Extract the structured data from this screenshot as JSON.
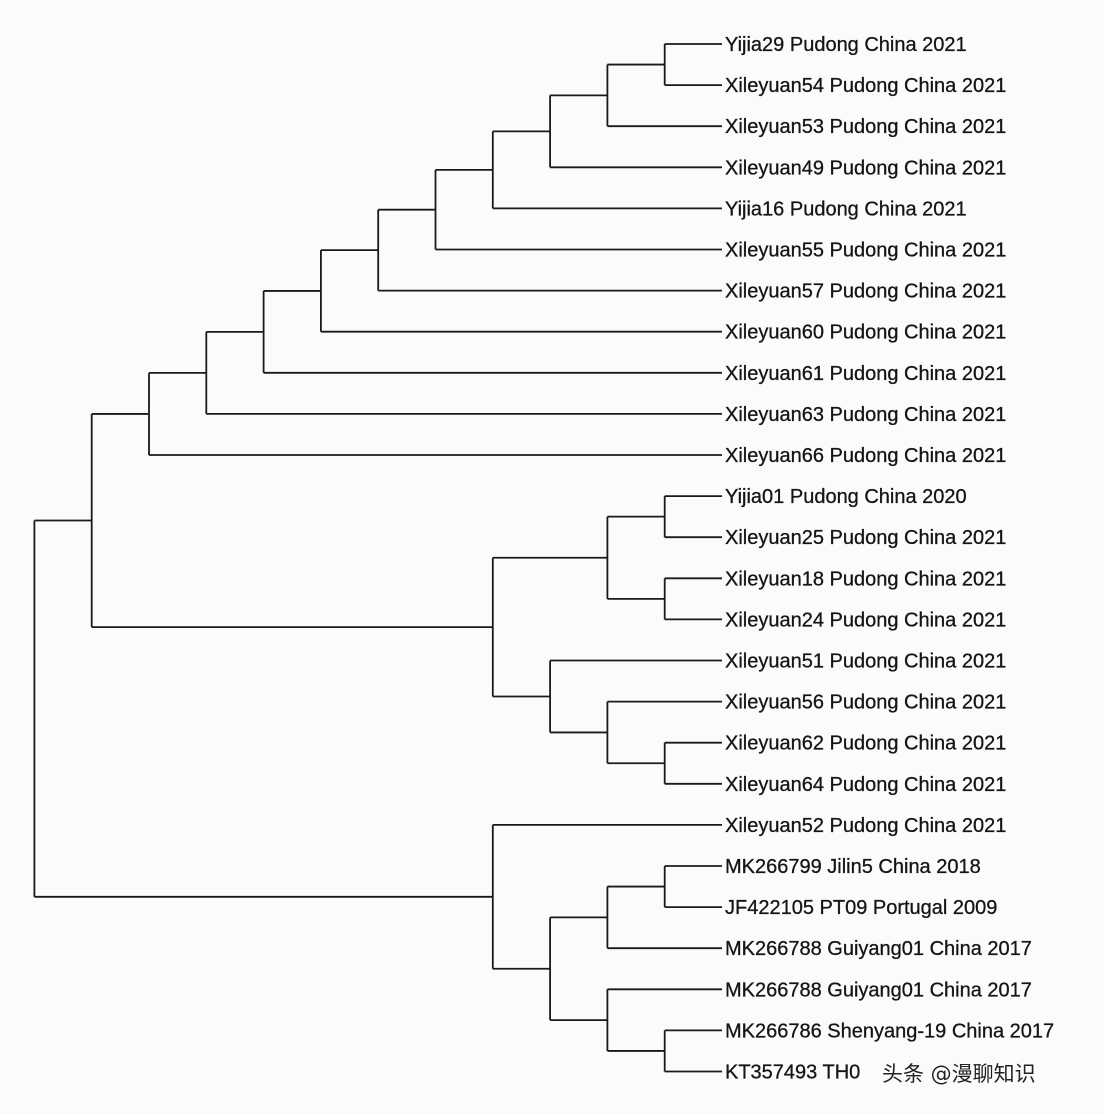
{
  "tree": {
    "children": [
      {
        "children": [
          {
            "children": [
              {
                "children": [
                  {
                    "children": [
                      {
                        "children": [
                          {
                            "children": [
                              {
                                "children": [
                                  {
                                    "children": [
                                      {
                                        "children": [
                                          {
                                            "children": [
                                              {
                                                "children": [
                                                  {
                                                    "name": "Yijia29 Pudong China 2021"
                                                  },
                                                  {
                                                    "name": "Xileyuan54 Pudong China 2021"
                                                  }
                                                ]
                                              },
                                              {
                                                "name": "Xileyuan53 Pudong China 2021"
                                              }
                                            ]
                                          },
                                          {
                                            "name": "Xileyuan49 Pudong China 2021"
                                          }
                                        ]
                                      },
                                      {
                                        "name": "Yijia16 Pudong China 2021"
                                      }
                                    ]
                                  },
                                  {
                                    "name": "Xileyuan55 Pudong China 2021"
                                  }
                                ]
                              },
                              {
                                "name": "Xileyuan57 Pudong China 2021"
                              }
                            ]
                          },
                          {
                            "name": "Xileyuan60 Pudong China 2021"
                          }
                        ]
                      },
                      {
                        "name": "Xileyuan61 Pudong China 2021"
                      }
                    ]
                  },
                  {
                    "name": "Xileyuan63 Pudong China 2021"
                  }
                ]
              },
              {
                "name": "Xileyuan66 Pudong China 2021"
              }
            ]
          },
          {
            "children": [
              {
                "children": [
                  {
                    "children": [
                      {
                        "name": "Yijia01 Pudong China 2020"
                      },
                      {
                        "name": "Xileyuan25 Pudong China 2021"
                      }
                    ]
                  },
                  {
                    "children": [
                      {
                        "name": "Xileyuan18 Pudong China 2021"
                      },
                      {
                        "name": "Xileyuan24 Pudong China 2021"
                      }
                    ]
                  }
                ]
              },
              {
                "children": [
                  {
                    "name": "Xileyuan51 Pudong China 2021"
                  },
                  {
                    "children": [
                      {
                        "name": "Xileyuan56 Pudong China 2021"
                      },
                      {
                        "children": [
                          {
                            "name": "Xileyuan62 Pudong China 2021"
                          },
                          {
                            "name": "Xileyuan64 Pudong China 2021"
                          }
                        ]
                      }
                    ]
                  }
                ]
              }
            ]
          }
        ]
      },
      {
        "children": [
          {
            "name": "Xileyuan52 Pudong China 2021"
          },
          {
            "children": [
              {
                "children": [
                  {
                    "children": [
                      {
                        "name": "MK266799 Jilin5 China 2018"
                      },
                      {
                        "name": "JF422105 PT09 Portugal 2009"
                      }
                    ]
                  },
                  {
                    "name": "MK266788 Guiyang01 China 2017"
                  }
                ]
              },
              {
                "children": [
                  {
                    "name": "MK266788 Guiyang01 China 2017"
                  },
                  {
                    "children": [
                      {
                        "name": "MK266786 Shenyang-19 China 2017"
                      },
                      {
                        "name": "KT357493 TH0"
                      }
                    ]
                  }
                ]
              }
            ]
          }
        ]
      }
    ]
  },
  "watermark": "头条 @漫聊知识"
}
